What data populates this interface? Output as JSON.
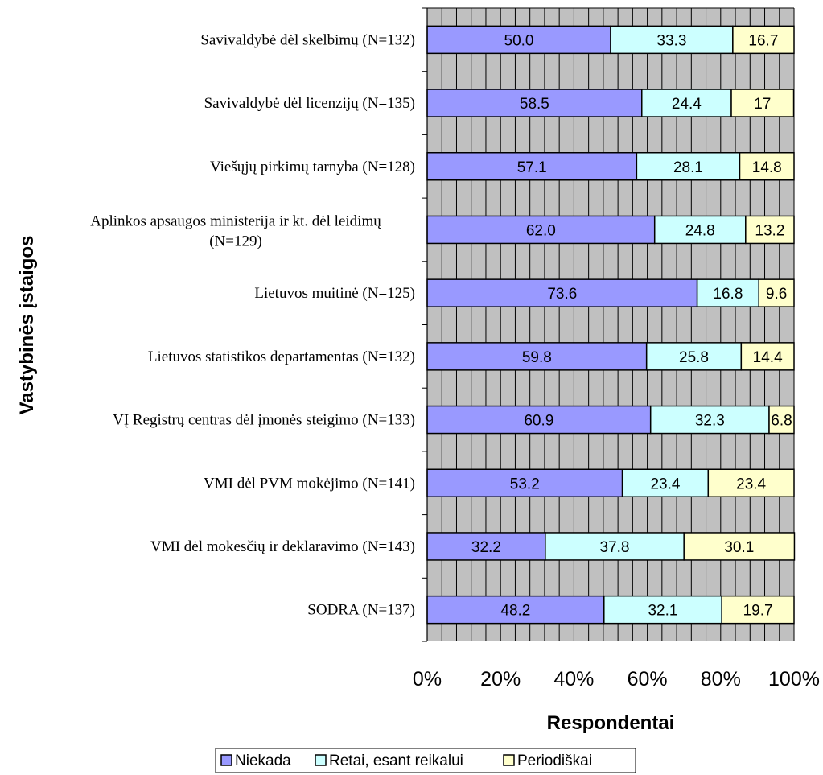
{
  "chart_data": {
    "type": "bar",
    "orientation": "horizontal",
    "stacked": true,
    "percent_stacked": true,
    "xlabel": "Respondentai",
    "ylabel": "Vastybinės įstaigos",
    "xlim": [
      0,
      100
    ],
    "x_ticks": [
      "0%",
      "20%",
      "40%",
      "60%",
      "80%",
      "100%"
    ],
    "grid": true,
    "legend_position": "bottom",
    "categories": [
      "Savivaldybė dėl skelbimų (N=132)",
      "Savivaldybė dėl licenzijų (N=135)",
      "Viešųjų pirkimų tarnyba (N=128)",
      "Aplinkos apsaugos ministerija ir kt. dėl leidimų (N=129)",
      "Lietuvos muitinė (N=125)",
      "Lietuvos statistikos departamentas (N=132)",
      "VĮ Registrų centras dėl įmonės steigimo (N=133)",
      "VMI dėl PVM mokėjimo (N=141)",
      "VMI dėl mokesčių ir deklaravimo (N=143)",
      "SODRA (N=137)"
    ],
    "series": [
      {
        "name": "Niekada",
        "color": "#9999ff",
        "values": [
          50.0,
          58.5,
          57.1,
          62.0,
          73.6,
          59.8,
          60.9,
          53.2,
          32.2,
          48.2
        ],
        "labels": [
          "50.0",
          "58.5",
          "57.1",
          "62.0",
          "73.6",
          "59.8",
          "60.9",
          "53.2",
          "32.2",
          "48.2"
        ]
      },
      {
        "name": "Retai, esant reikalui",
        "color": "#ccffff",
        "values": [
          33.3,
          24.4,
          28.1,
          24.8,
          16.8,
          25.8,
          32.3,
          23.4,
          37.8,
          32.1
        ],
        "labels": [
          "33.3",
          "24.4",
          "28.1",
          "24.8",
          "16.8",
          "25.8",
          "32.3",
          "23.4",
          "37.8",
          "32.1"
        ]
      },
      {
        "name": "Periodiškai",
        "color": "#ffffcc",
        "values": [
          16.7,
          17,
          14.8,
          13.2,
          9.6,
          14.4,
          6.8,
          23.4,
          30.1,
          19.7
        ],
        "labels": [
          "16.7",
          "17",
          "14.8",
          "13.2",
          "9.6",
          "14.4",
          "6.8",
          "23.4",
          "30.1",
          "19.7"
        ]
      }
    ],
    "plot_background": "#c0c0c0",
    "grid_color": "#000000"
  }
}
